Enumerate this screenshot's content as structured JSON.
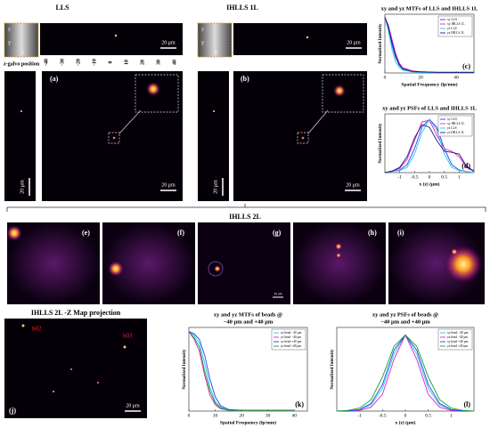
{
  "figure": {
    "titles": {
      "lls": "LLS",
      "ihlls_1l": "IHLLS 1L",
      "ihlls_2l": "IHLLS 2L",
      "zmap": "IHLLS 2L -Z Map projection"
    },
    "z_galvo_label": "z-galvo position",
    "z_galvo_ticks": [
      "-40",
      "-30",
      "-20",
      "-10",
      "0",
      "10",
      "20",
      "30",
      "40"
    ],
    "inset_axes": [
      "z",
      "y",
      "x",
      "z",
      "y",
      "x"
    ],
    "panel_labels": [
      "(a)",
      "(b)",
      "(e)",
      "(f)",
      "(g)",
      "(h)",
      "(i)",
      "(j)"
    ],
    "bead_labels": [
      "b02",
      "b03"
    ],
    "scale_bars": [
      "20 μm",
      "20 μm",
      "20 μm",
      "20 μm",
      "20 μm",
      "20 μm",
      "20 μm",
      "20 μm"
    ]
  },
  "chart_data": [
    {
      "type": "line",
      "panel_label": "(c)",
      "title": [
        "xy and yz MTFs of LLS and IHLLS 1L"
      ],
      "xlabel": "Spatial Frequency (lp/mm)",
      "ylabel": "Normalized Intensity",
      "x": [
        0,
        2,
        4,
        6,
        8,
        10,
        15,
        20,
        30,
        40,
        50
      ],
      "xlim": [
        0,
        50
      ],
      "xticks": [
        0,
        20,
        40
      ],
      "ylim": [
        0,
        1.05
      ],
      "legend": "upper right",
      "grid": false,
      "series": [
        {
          "name": "xy LLS",
          "color": "#1f3fff",
          "values": [
            1,
            0.8,
            0.5,
            0.28,
            0.14,
            0.07,
            0.03,
            0.02,
            0.01,
            0.01,
            0.01
          ]
        },
        {
          "name": "xy IHLLS 1L",
          "color": "#e020c0",
          "values": [
            1,
            0.85,
            0.6,
            0.35,
            0.18,
            0.09,
            0.04,
            0.02,
            0.01,
            0.01,
            0.01
          ]
        },
        {
          "name": "yz LLS",
          "color": "#20c8e8",
          "values": [
            1,
            0.75,
            0.42,
            0.2,
            0.1,
            0.05,
            0.02,
            0.01,
            0.01,
            0.01,
            0.01
          ]
        },
        {
          "name": "yz IHLLS 1L",
          "color": "#1a1a80",
          "values": [
            1,
            0.82,
            0.55,
            0.32,
            0.16,
            0.08,
            0.03,
            0.02,
            0.01,
            0.01,
            0.01
          ]
        }
      ]
    },
    {
      "type": "line",
      "panel_label": "(d)",
      "title": [
        "xy and yz PSFs of LLS and IHLLS 1L"
      ],
      "xlabel": "x (z) (μm)",
      "ylabel": "Normalized Intensity",
      "x": [
        -1.5,
        -1.25,
        -1,
        -0.75,
        -0.5,
        -0.25,
        0,
        0.25,
        0.5,
        0.75,
        1,
        1.25,
        1.5
      ],
      "xlim": [
        -1.5,
        1.5
      ],
      "xticks": [
        -1,
        -0.5,
        0,
        0.5,
        1
      ],
      "ylim": [
        0,
        1.1
      ],
      "legend": "upper right",
      "grid": false,
      "series": [
        {
          "name": "xy LLS",
          "color": "#1f3fff",
          "values": [
            0,
            0.02,
            0.05,
            0.15,
            0.45,
            0.85,
            1,
            0.85,
            0.45,
            0.15,
            0.05,
            0.02,
            0
          ]
        },
        {
          "name": "xy IHLLS 1L",
          "color": "#e020c0",
          "values": [
            0,
            0.03,
            0.08,
            0.25,
            0.6,
            0.95,
            0.98,
            0.7,
            0.45,
            0.4,
            0.3,
            0.1,
            0.02
          ]
        },
        {
          "name": "yz LLS",
          "color": "#20c8e8",
          "values": [
            0,
            0.02,
            0.04,
            0.1,
            0.35,
            0.75,
            1,
            0.8,
            0.35,
            0.1,
            0.04,
            0.02,
            0
          ]
        },
        {
          "name": "yz IHLLS 1L",
          "color": "#1a1a80",
          "values": [
            0,
            0.03,
            0.1,
            0.3,
            0.65,
            0.9,
            0.85,
            0.6,
            0.4,
            0.38,
            0.35,
            0.12,
            0.03
          ]
        }
      ]
    },
    {
      "type": "line",
      "panel_label": "(k)",
      "title": [
        "xy and yz MTFs of beads @",
        "−40 μm and +40 μm"
      ],
      "xlabel": "Spatial Frequency (lp/mm)",
      "ylabel": "Normalized Intensity",
      "x": [
        0,
        2,
        4,
        6,
        8,
        10,
        12,
        15,
        20,
        30,
        40
      ],
      "xlim": [
        0,
        45
      ],
      "xticks": [
        0,
        10,
        20,
        30,
        40
      ],
      "ylim": [
        0,
        1.05
      ],
      "legend": "upper right",
      "grid": false,
      "series": [
        {
          "name": "xy bead −40 μm",
          "color": "#20c8e8",
          "values": [
            1,
            0.95,
            0.85,
            0.6,
            0.3,
            0.12,
            0.05,
            0.02,
            0.01,
            0.01,
            0.01
          ]
        },
        {
          "name": "yz bead −40 μm",
          "color": "#e020c0",
          "values": [
            1,
            0.9,
            0.75,
            0.45,
            0.2,
            0.08,
            0.03,
            0.01,
            0.01,
            0.01,
            0.01
          ]
        },
        {
          "name": "xy bead +40 μm",
          "color": "#1f3fff",
          "values": [
            1,
            0.97,
            0.9,
            0.7,
            0.4,
            0.18,
            0.07,
            0.02,
            0.01,
            0.01,
            0.01
          ]
        },
        {
          "name": "yz bead +40 μm",
          "color": "#10a020",
          "values": [
            1,
            0.92,
            0.8,
            0.5,
            0.25,
            0.1,
            0.04,
            0.01,
            0.01,
            0.01,
            0.01
          ]
        }
      ]
    },
    {
      "type": "line",
      "panel_label": "(l)",
      "title": [
        "xy and yz PSFs of beads @",
        "−40 μm and +40 μm"
      ],
      "xlabel": "x (z) (μm)",
      "ylabel": "Normalized Intensity",
      "x": [
        -1.5,
        -1.25,
        -1,
        -0.75,
        -0.5,
        -0.25,
        0,
        0.25,
        0.5,
        0.75,
        1,
        1.25,
        1.5
      ],
      "xlim": [
        -1.5,
        1.5
      ],
      "xticks": [
        -1,
        -0.5,
        0,
        0.5,
        1
      ],
      "ylim": [
        0,
        1.1
      ],
      "legend": "upper right",
      "grid": false,
      "series": [
        {
          "name": "xy bead −40 μm",
          "color": "#20c8e8",
          "values": [
            0,
            0,
            0.02,
            0.08,
            0.3,
            0.75,
            1,
            0.75,
            0.3,
            0.08,
            0.02,
            0,
            0
          ]
        },
        {
          "name": "yz bead −40 μm",
          "color": "#e020c0",
          "values": [
            0,
            0,
            0.01,
            0.05,
            0.22,
            0.68,
            1,
            0.68,
            0.22,
            0.05,
            0.01,
            0,
            0
          ]
        },
        {
          "name": "xy bead +40 μm",
          "color": "#1f3fff",
          "values": [
            0,
            0,
            0.02,
            0.1,
            0.35,
            0.8,
            1,
            0.8,
            0.35,
            0.1,
            0.02,
            0,
            0
          ]
        },
        {
          "name": "yz bead +40 μm",
          "color": "#10a020",
          "values": [
            0,
            0.01,
            0.04,
            0.15,
            0.45,
            0.85,
            1,
            0.85,
            0.45,
            0.15,
            0.04,
            0.01,
            0
          ]
        }
      ]
    }
  ]
}
